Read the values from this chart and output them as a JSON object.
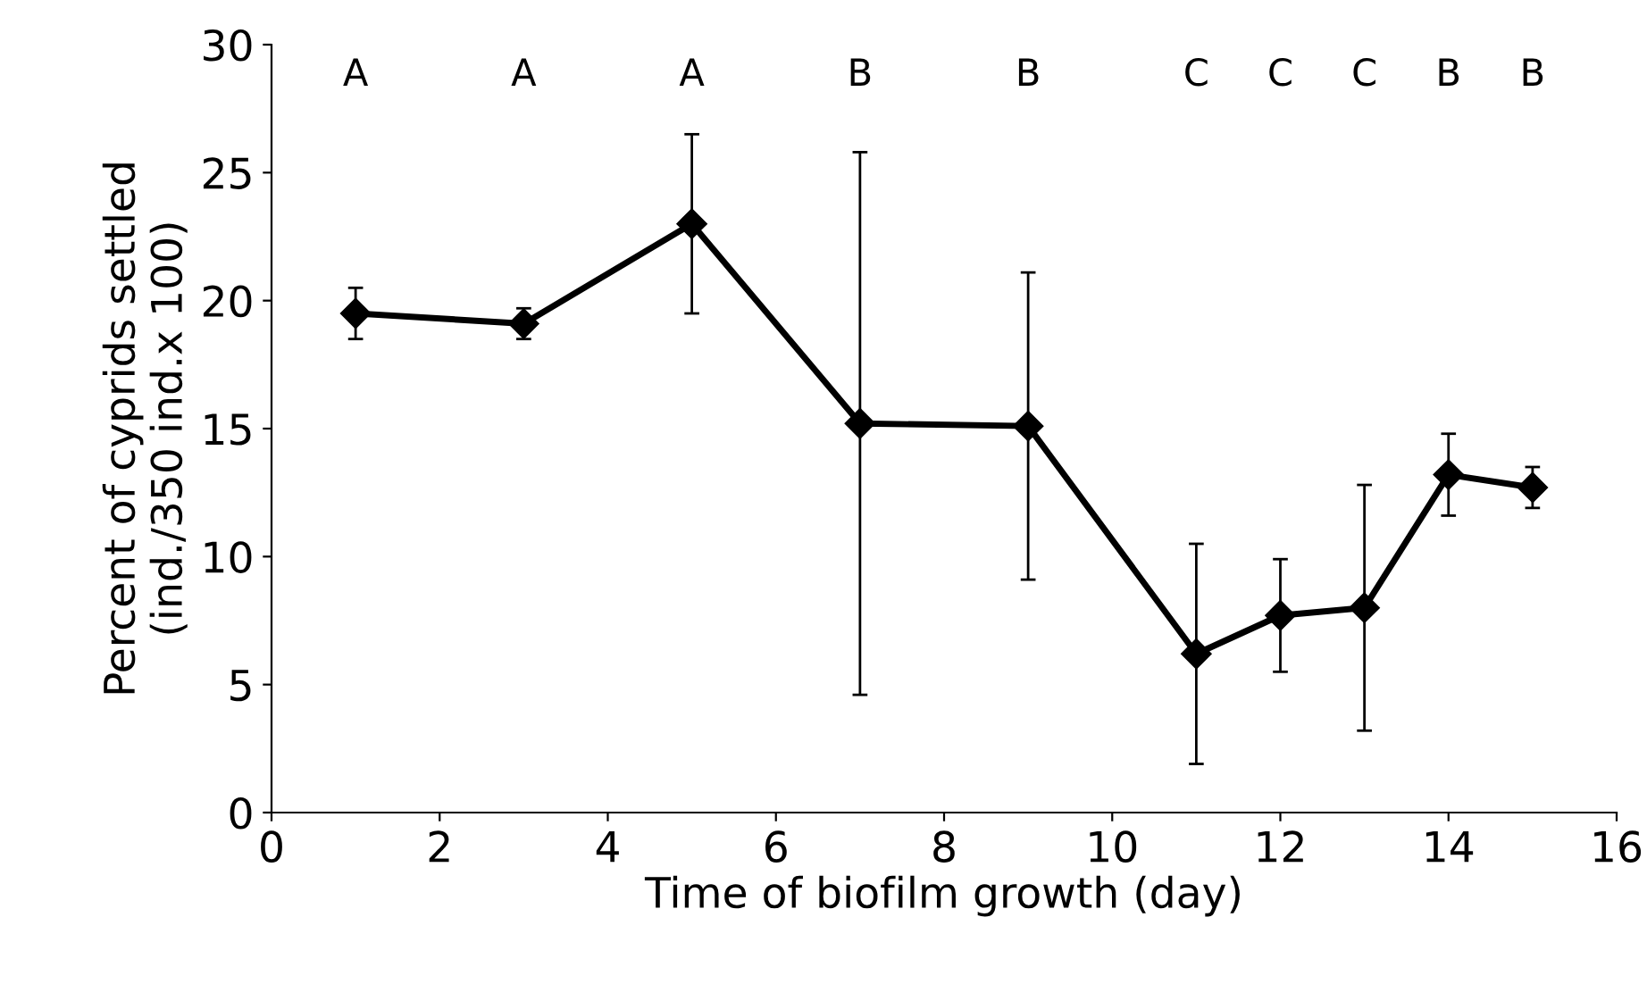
{
  "chart_data": {
    "type": "line",
    "xlabel": "Time of biofilm growth (day)",
    "ylabel": "Percent of cyprids settled\n(ind./350 ind.x 100)",
    "x": [
      1,
      3,
      5,
      7,
      9,
      11,
      12,
      13,
      14,
      15
    ],
    "series": [
      {
        "color": "#000000",
        "values": [
          19.5,
          19.1,
          23.0,
          15.2,
          15.1,
          6.2,
          7.7,
          8.0,
          13.2,
          12.7
        ],
        "errors": [
          1.0,
          0.6,
          3.5,
          10.6,
          6.0,
          4.3,
          2.2,
          4.8,
          1.6,
          0.8
        ]
      }
    ],
    "marker": "diamond",
    "line_style": "solid",
    "grid": false,
    "legend": false,
    "xlim": [
      0,
      16
    ],
    "xticks": [
      0,
      2,
      4,
      6,
      8,
      10,
      12,
      14,
      16
    ],
    "ylim": [
      0,
      30
    ],
    "yticks": [
      0,
      5,
      10,
      15,
      20,
      25,
      30
    ],
    "annotations": [
      "A",
      "A",
      "A",
      "B",
      "B",
      "C",
      "C",
      "C",
      "B",
      "B"
    ]
  }
}
